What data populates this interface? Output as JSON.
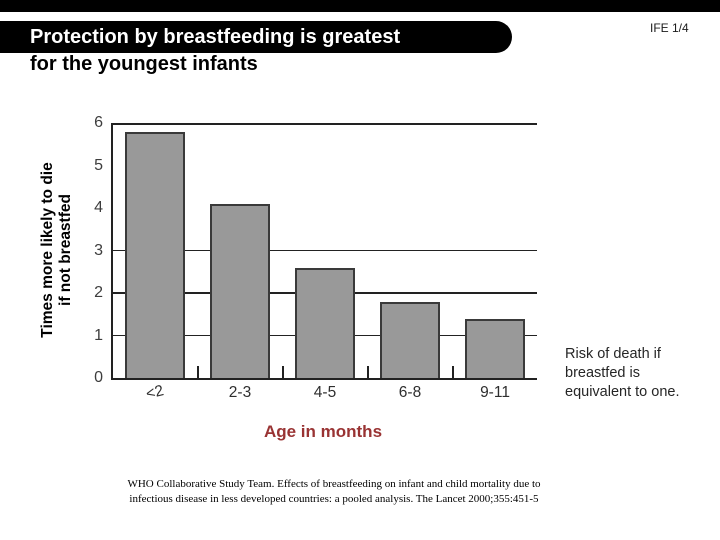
{
  "slide": {
    "title_line1": "Protection by breastfeeding is greatest",
    "title_line2": "for the youngest infants",
    "slide_number": "IFE 1/4",
    "note": "Risk of death if breastfed is equivalent to one.",
    "citation_lines": [
      "WHO Collaborative Study Team. Effects of breastfeeding on infant and child mortality due to",
      "infectious disease in less developed countries: a pooled analysis. The Lancet 2000;355:451-5"
    ],
    "colors": {
      "accent_red": "#993333",
      "bar_fill": "#999999",
      "bar_border": "#3a3a3a",
      "pill_bg": "#000000",
      "pill_text": "#ffffff"
    }
  },
  "chart_data": {
    "type": "bar",
    "categories": [
      "<2",
      "2-3",
      "4-5",
      "6-8",
      "9-11"
    ],
    "values": [
      5.8,
      4.1,
      2.6,
      1.8,
      1.4
    ],
    "title": "",
    "xlabel": "Age in months",
    "ylabel": "Times more likely to die if not breastfed",
    "ylabel_lines": [
      "Times more likely to die",
      "if not breastfed"
    ],
    "ylim": [
      0,
      6
    ],
    "yticks": [
      0,
      1,
      2,
      3,
      4,
      5,
      6
    ],
    "gridlines_at": [
      1,
      2,
      3,
      6
    ],
    "grid": "partial-horizontal",
    "legend": "none"
  }
}
